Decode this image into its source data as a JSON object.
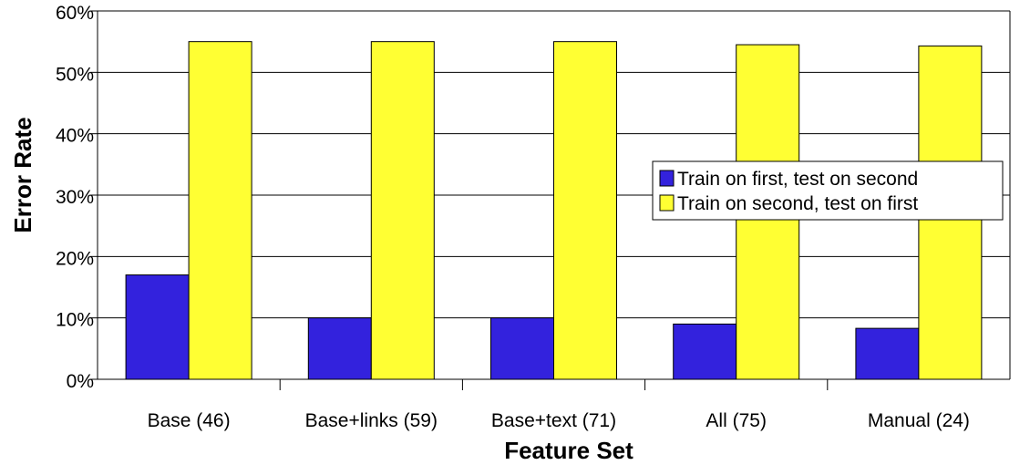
{
  "chart_data": {
    "type": "bar",
    "title": "",
    "xlabel": "Feature Set",
    "ylabel": "Error Rate",
    "ylim": [
      0,
      60
    ],
    "yticks": [
      "0%",
      "10%",
      "20%",
      "30%",
      "40%",
      "50%",
      "60%"
    ],
    "categories": [
      "Base (46)",
      "Base+links (59)",
      "Base+text (71)",
      "All (75)",
      "Manual (24)"
    ],
    "series": [
      {
        "name": "Train on first, test on second",
        "color": "#3322dd",
        "values": [
          17,
          10,
          10,
          9,
          8.3
        ]
      },
      {
        "name": "Train on second, test on first",
        "color": "#ffff33",
        "values": [
          55,
          55,
          55,
          54.5,
          54.3
        ]
      }
    ],
    "grid": true,
    "legend_position": "right"
  }
}
